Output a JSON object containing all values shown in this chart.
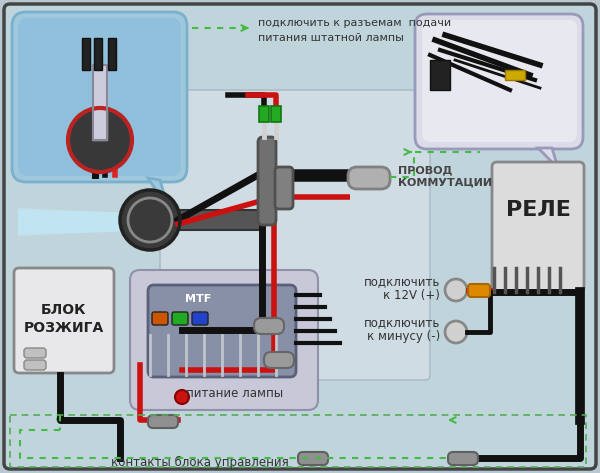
{
  "bg_outer": "#b8c8d0",
  "bg_inner": "#c0d4dc",
  "bg_center_rect": "#c8d8e0",
  "bg_ignition_area": "#ccd8e0",
  "bubble_lamp_color": "#a0c8dc",
  "bubble_relay_color": "#dcdce8",
  "relay_box_color": "#dcdcdc",
  "ignition_box_color": "#e0e0e0",
  "mtf_outer_color": "#ccc8d8",
  "mtf_inner_color": "#9098b0",
  "wire_black": "#111111",
  "wire_red": "#cc1111",
  "wire_green": "#33aa33",
  "connector_gray": "#909090",
  "connector_silver": "#c0c0c0",
  "fuse_orange": "#dd8800",
  "texts": {
    "connect_top1": "подключить к разъемам  подачи",
    "connect_top2": "питания штатной лампы",
    "wire_comm1": "ПРОВОД",
    "wire_comm2": "КОММУТАЦИИ",
    "relay": "РЕЛЕ",
    "block1": "БЛОК",
    "block2": "РОЗЖИГА",
    "connect_12v1": "подключить",
    "connect_12v2": "к 12V (+)",
    "connect_minus1": "подключить",
    "connect_minus2": "к минусу (-)",
    "lamp_power": "питание лампы",
    "contacts": "контакты блока управления"
  }
}
